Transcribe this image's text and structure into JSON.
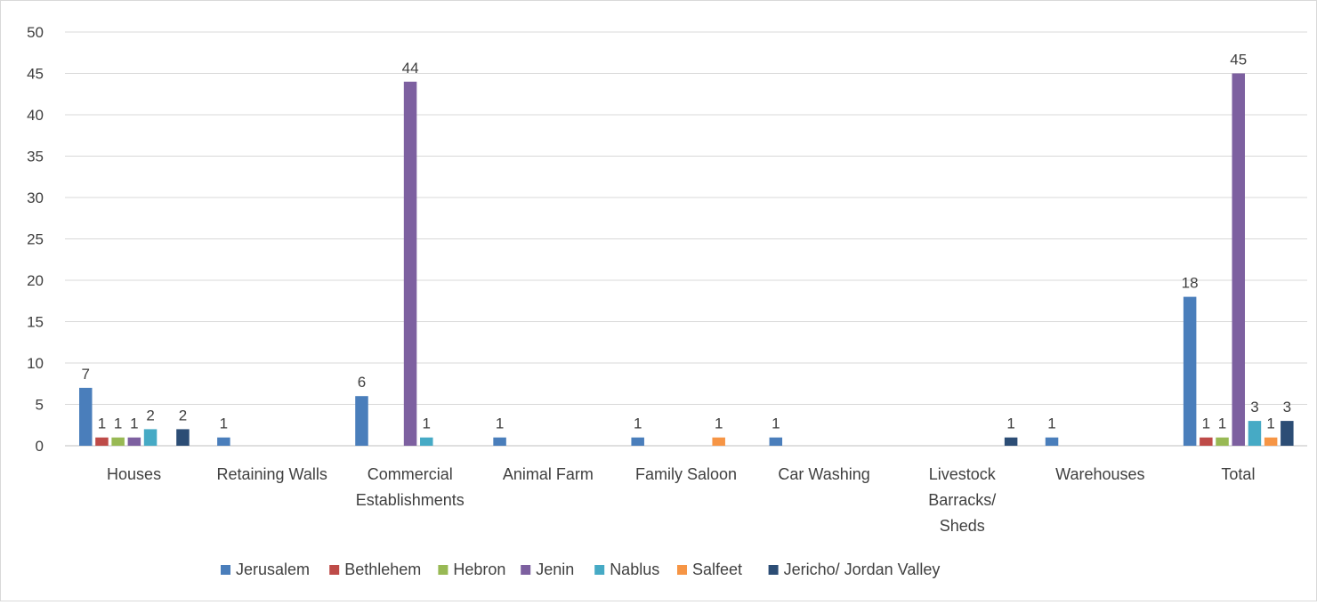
{
  "chart_data": {
    "type": "bar",
    "title": "",
    "xlabel": "",
    "ylabel": "",
    "ylim": [
      0,
      50
    ],
    "yticks": [
      0,
      5,
      10,
      15,
      20,
      25,
      30,
      35,
      40,
      45,
      50
    ],
    "grid": true,
    "legend_position": "bottom",
    "categories": [
      [
        "Houses"
      ],
      [
        "Retaining Walls"
      ],
      [
        "Commercial",
        "Establishments"
      ],
      [
        "Animal Farm"
      ],
      [
        "Family Saloon"
      ],
      [
        "Car Washing"
      ],
      [
        "Livestock",
        "Barracks/",
        "Sheds"
      ],
      [
        "Warehouses"
      ],
      [
        "Total"
      ]
    ],
    "series": [
      {
        "name": "Jerusalem",
        "color": "#4a7ebb",
        "values": [
          7,
          1,
          6,
          1,
          1,
          1,
          null,
          1,
          18
        ]
      },
      {
        "name": "Bethlehem",
        "color": "#be4b48",
        "values": [
          1,
          null,
          null,
          null,
          null,
          null,
          null,
          null,
          1
        ]
      },
      {
        "name": "Hebron",
        "color": "#98b954",
        "values": [
          1,
          null,
          null,
          null,
          null,
          null,
          null,
          null,
          1
        ]
      },
      {
        "name": "Jenin",
        "color": "#7d60a0",
        "values": [
          1,
          null,
          44,
          null,
          null,
          null,
          null,
          null,
          45
        ]
      },
      {
        "name": "Nablus",
        "color": "#46aac5",
        "values": [
          2,
          null,
          1,
          null,
          null,
          null,
          null,
          null,
          3
        ]
      },
      {
        "name": "Salfeet",
        "color": "#f69545",
        "values": [
          null,
          null,
          null,
          null,
          1,
          null,
          null,
          null,
          1
        ]
      },
      {
        "name": "Jericho/ Jordan Valley",
        "color": "#2c4d75",
        "values": [
          2,
          null,
          null,
          null,
          null,
          null,
          1,
          null,
          3
        ]
      }
    ]
  }
}
